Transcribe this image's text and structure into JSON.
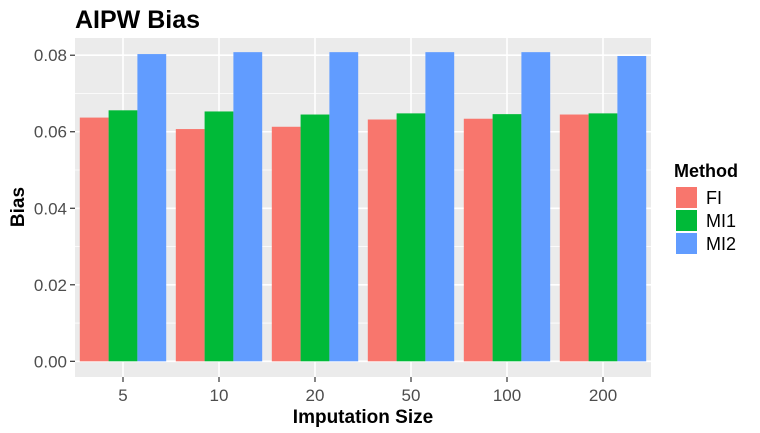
{
  "chart_data": {
    "type": "bar",
    "title": "AIPW Bias",
    "xlabel": "Imputation Size",
    "ylabel": "Bias",
    "categories": [
      "5",
      "10",
      "20",
      "50",
      "100",
      "200"
    ],
    "series": [
      {
        "name": "FI",
        "color": "#F8766D",
        "values": [
          0.0637,
          0.0607,
          0.0613,
          0.0632,
          0.0634,
          0.0645
        ]
      },
      {
        "name": "MI1",
        "color": "#00BA38",
        "values": [
          0.0656,
          0.0653,
          0.0645,
          0.0648,
          0.0646,
          0.0648
        ]
      },
      {
        "name": "MI2",
        "color": "#619CFF",
        "values": [
          0.0803,
          0.0808,
          0.0808,
          0.0808,
          0.0808,
          0.0798
        ]
      }
    ],
    "ylim": [
      -0.0041,
      0.0845
    ],
    "yticks": [
      0.0,
      0.02,
      0.04,
      0.06,
      0.08
    ],
    "ytick_labels": [
      "0.00",
      "0.02",
      "0.04",
      "0.06",
      "0.08"
    ],
    "legend": {
      "title": "Method",
      "position": "right"
    },
    "grid": true,
    "panel_background": "#EBEBEB",
    "grid_color": "#FFFFFF"
  }
}
